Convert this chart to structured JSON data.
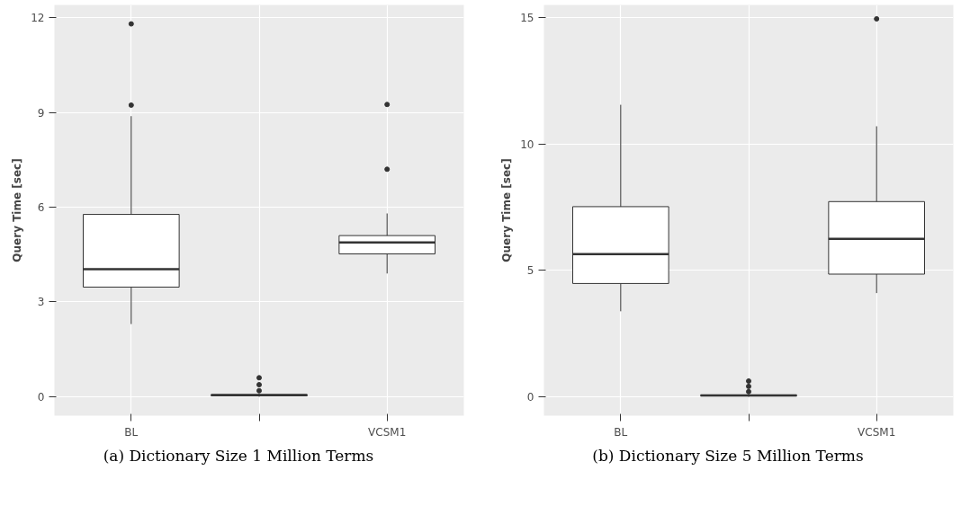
{
  "chart_data": [
    {
      "type": "box",
      "ylabel": "Query Time [sec]",
      "categories": [
        "BL",
        null,
        "VCSM1"
      ],
      "ylim": [
        -0.6,
        12.4
      ],
      "yticks": [
        0,
        3,
        6,
        9,
        12
      ],
      "grid": true,
      "annotations": [
        "(a) Dictionary Size 1 Million Terms"
      ],
      "boxes": [
        {
          "low": 2.3,
          "q1": 3.47,
          "median": 4.04,
          "q3": 5.77,
          "high": 8.88,
          "outliers": [
            9.23,
            11.8
          ]
        },
        {
          "low": 0,
          "q1": 0.03,
          "median": 0.05,
          "q3": 0.07,
          "high": 0.1,
          "outliers": [
            0.19,
            0.38,
            0.6
          ]
        },
        {
          "low": 3.9,
          "q1": 4.52,
          "median": 4.88,
          "q3": 5.1,
          "high": 5.8,
          "outliers": [
            7.2,
            9.25
          ]
        }
      ]
    },
    {
      "type": "box",
      "ylabel": "Query Time [sec]",
      "categories": [
        "BL",
        null,
        "VCSM1"
      ],
      "ylim": [
        -0.75,
        15.5
      ],
      "yticks": [
        0,
        5,
        10,
        15
      ],
      "grid": true,
      "annotations": [
        "(b) Dictionary Size 5 Million Terms"
      ],
      "boxes": [
        {
          "low": 3.38,
          "q1": 4.48,
          "median": 5.64,
          "q3": 7.52,
          "high": 11.55
        },
        {
          "low": 0,
          "q1": 0.03,
          "median": 0.05,
          "q3": 0.07,
          "high": 0.1,
          "outliers": [
            0.2,
            0.41,
            0.62
          ]
        },
        {
          "low": 4.1,
          "q1": 4.85,
          "median": 6.25,
          "q3": 7.72,
          "high": 10.7,
          "outliers": [
            14.95
          ]
        }
      ]
    }
  ]
}
